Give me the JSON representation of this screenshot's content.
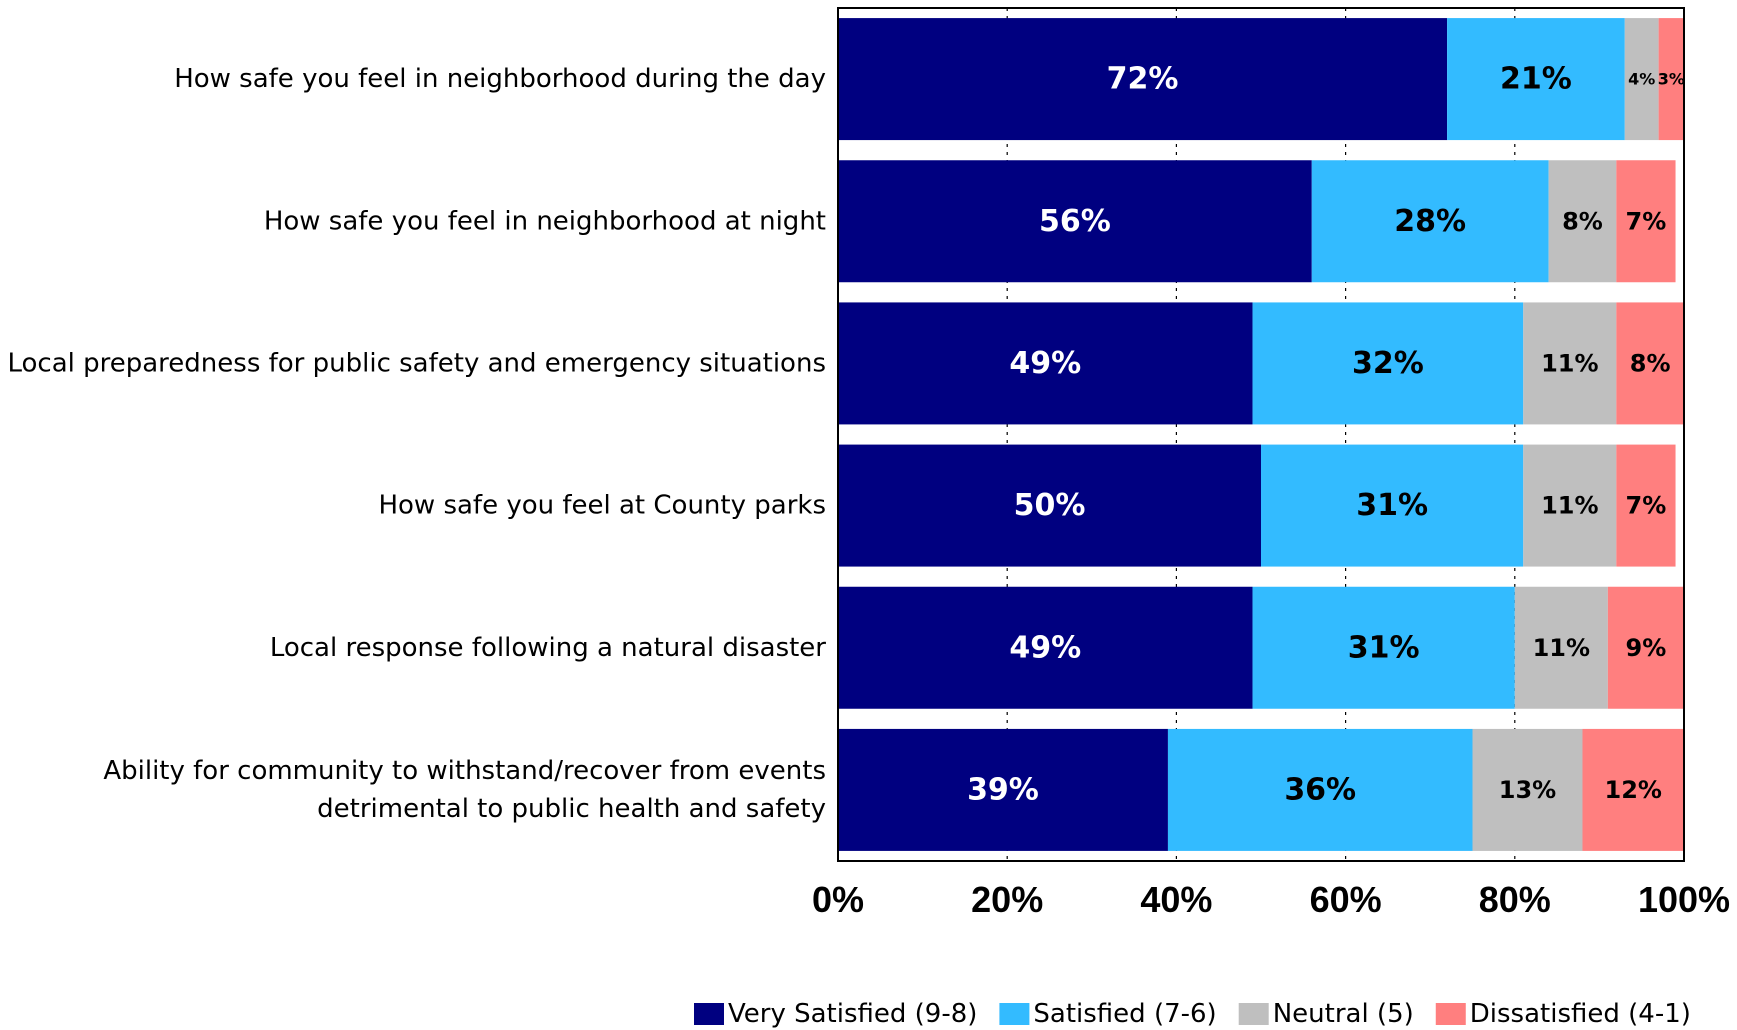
{
  "chart_data": {
    "type": "bar",
    "orientation": "horizontal",
    "stacked": true,
    "categories": [
      [
        "How safe you feel in neighborhood during the day"
      ],
      [
        "How safe you feel in neighborhood at night"
      ],
      [
        "Local preparedness for public safety and emergency situations"
      ],
      [
        "How safe you feel at County parks"
      ],
      [
        "Local response following a natural disaster"
      ],
      [
        "Ability for community to withstand/recover from events",
        "detrimental to public health and safety"
      ]
    ],
    "series": [
      {
        "name": "Very Satisfied (9-8)",
        "color": "#000080",
        "label_color": "#ffffff",
        "values": [
          72,
          56,
          49,
          50,
          49,
          39
        ]
      },
      {
        "name": "Satisfied (7-6)",
        "color": "#33bbff",
        "label_color": "#000000",
        "values": [
          21,
          28,
          32,
          31,
          31,
          36
        ]
      },
      {
        "name": "Neutral (5)",
        "color": "#bfbfbf",
        "label_color": "#000000",
        "values": [
          4,
          8,
          11,
          11,
          11,
          13
        ]
      },
      {
        "name": "Dissatisfied (4-1)",
        "color": "#ff7f7f",
        "label_color": "#000000",
        "values": [
          3,
          7,
          8,
          7,
          9,
          12
        ]
      }
    ],
    "xlim": [
      0,
      100
    ],
    "xticks": [
      "0%",
      "20%",
      "40%",
      "60%",
      "80%",
      "100%"
    ],
    "value_suffix": "%",
    "grid": "vertical dashed",
    "legend_position": "bottom"
  }
}
